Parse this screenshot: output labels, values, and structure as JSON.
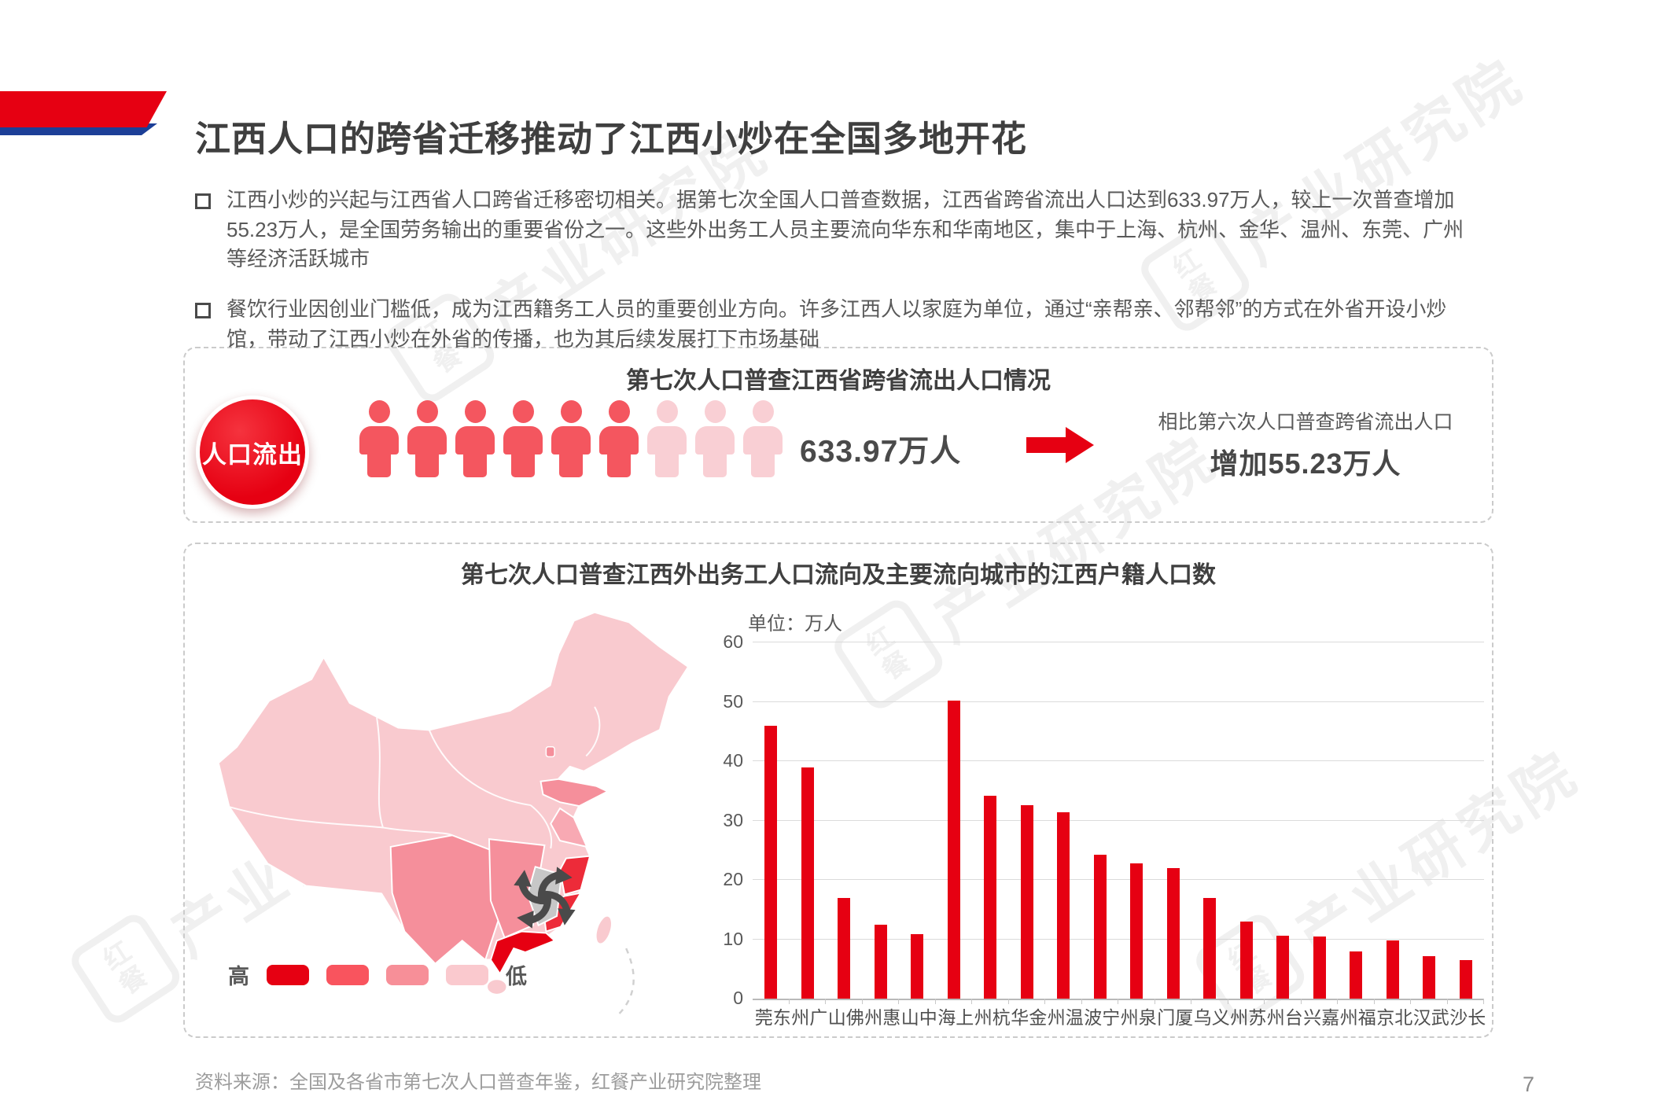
{
  "page": {
    "number": "7"
  },
  "header": {
    "title": "江西人口的跨省迁移推动了江西小炒在全国多地开花"
  },
  "bullets": [
    {
      "text": "江西小炒的兴起与江西省人口跨省迁移密切相关。据第七次全国人口普查数据，江西省跨省流出人口达到633.97万人，较上一次普查增加55.23万人，是全国劳务输出的重要省份之一。这些外出务工人员主要流向华东和华南地区，集中于上海、杭州、金华、温州、东莞、广州等经济活跃城市"
    },
    {
      "text": "餐饮行业因创业门槛低，成为江西籍务工人员的重要创业方向。许多江西人以家庭为单位，通过“亲帮亲、邻帮邻”的方式在外省开设小炒馆，带动了江西小炒在外省的传播，也为其后续发展打下市场基础"
    }
  ],
  "box1": {
    "title": "第七次人口普查江西省跨省流出人口情况",
    "badge_label": "人口流出",
    "icons": {
      "total": 9,
      "filled": 6,
      "filled_color": "#F4565F",
      "light_color": "#F9CFD4"
    },
    "value": "633.97万人",
    "compare_caption": "相比第六次人口普查跨省流出人口",
    "compare_value": "增加55.23万人"
  },
  "box2": {
    "title": "第七次人口普查江西外出务工人口流向及主要流向城市的江西户籍人口数",
    "legend": {
      "high": "高",
      "low": "低",
      "colors": [
        "#E60012",
        "#F9545E",
        "#F78F98",
        "#FAC9CE"
      ]
    }
  },
  "chart_data": {
    "type": "bar",
    "title": "第七次人口普查江西外出务工人口流向及主要流向城市的江西户籍人口数",
    "unit_label": "单位：万人",
    "categories": [
      "东莞",
      "广州",
      "佛山",
      "惠州",
      "中山",
      "上海",
      "杭州",
      "金华",
      "温州",
      "宁波",
      "泉州",
      "厦门",
      "义乌",
      "苏州",
      "台州",
      "嘉兴",
      "福州",
      "北京",
      "武汉",
      "长沙"
    ],
    "values": [
      46,
      39,
      17,
      12.5,
      10.8,
      50.2,
      34.2,
      32.6,
      31.4,
      24.3,
      22.8,
      22,
      17,
      13,
      10.6,
      10.4,
      8,
      9.8,
      7.1,
      6.5
    ],
    "ylim": [
      0,
      60
    ],
    "yticks": [
      0,
      10,
      20,
      30,
      40,
      50,
      60
    ],
    "bar_color": "#E60012",
    "grid": true,
    "legend_position": "none"
  },
  "colors": {
    "accent_red": "#E60012",
    "ribbon_blue": "#1C3F97",
    "jiangxi_gray": "#C7C7C7"
  },
  "footer": {
    "source": "资料来源：全国及各省市第七次人口普查年鉴，红餐产业研究院整理"
  },
  "watermark": {
    "logo": "红\n餐",
    "text": "产业研究院"
  }
}
